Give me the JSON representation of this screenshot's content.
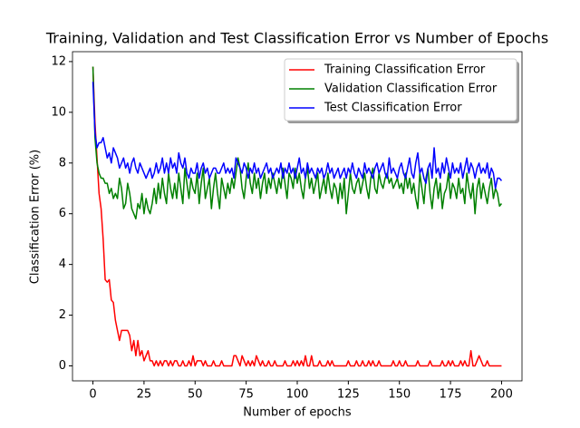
{
  "chart_data": {
    "type": "line",
    "title": "Training, Validation and Test Classification Error vs Number of Epochs",
    "xlabel": "Number of epochs",
    "ylabel": "Classification Error (%)",
    "x": [
      0,
      1,
      2,
      3,
      4,
      5,
      6,
      7,
      8,
      9,
      10,
      11,
      12,
      13,
      14,
      15,
      16,
      17,
      18,
      19,
      20,
      21,
      22,
      23,
      24,
      25,
      26,
      27,
      28,
      29,
      30,
      31,
      32,
      33,
      34,
      35,
      36,
      37,
      38,
      39,
      40,
      41,
      42,
      43,
      44,
      45,
      46,
      47,
      48,
      49,
      50,
      51,
      52,
      53,
      54,
      55,
      56,
      57,
      58,
      59,
      60,
      61,
      62,
      63,
      64,
      65,
      66,
      67,
      68,
      69,
      70,
      71,
      72,
      73,
      74,
      75,
      76,
      77,
      78,
      79,
      80,
      81,
      82,
      83,
      84,
      85,
      86,
      87,
      88,
      89,
      90,
      91,
      92,
      93,
      94,
      95,
      96,
      97,
      98,
      99,
      100,
      101,
      102,
      103,
      104,
      105,
      106,
      107,
      108,
      109,
      110,
      111,
      112,
      113,
      114,
      115,
      116,
      117,
      118,
      119,
      120,
      121,
      122,
      123,
      124,
      125,
      126,
      127,
      128,
      129,
      130,
      131,
      132,
      133,
      134,
      135,
      136,
      137,
      138,
      139,
      140,
      141,
      142,
      143,
      144,
      145,
      146,
      147,
      148,
      149,
      150,
      151,
      152,
      153,
      154,
      155,
      156,
      157,
      158,
      159,
      160,
      161,
      162,
      163,
      164,
      165,
      166,
      167,
      168,
      169,
      170,
      171,
      172,
      173,
      174,
      175,
      176,
      177,
      178,
      179,
      180,
      181,
      182,
      183,
      184,
      185,
      186,
      187,
      188,
      189,
      190,
      191,
      192,
      193,
      194,
      195,
      196,
      197,
      198,
      199,
      200
    ],
    "series": [
      {
        "name": "Training Classification Error",
        "color": "#ff0000",
        "values": [
          11.8,
          9.6,
          8.2,
          6.8,
          6.2,
          5.0,
          3.4,
          3.3,
          3.4,
          2.6,
          2.5,
          1.8,
          1.4,
          1.0,
          1.4,
          1.4,
          1.4,
          1.4,
          1.2,
          0.6,
          1.0,
          0.4,
          1.0,
          0.4,
          0.6,
          0.2,
          0.4,
          0.6,
          0.2,
          0.2,
          0,
          0.2,
          0,
          0.2,
          0,
          0.2,
          0.2,
          0,
          0.2,
          0,
          0.2,
          0.2,
          0,
          0,
          0.2,
          0,
          0,
          0.2,
          0,
          0.4,
          0,
          0.2,
          0.2,
          0.2,
          0,
          0.2,
          0,
          0,
          0,
          0.2,
          0,
          0,
          0,
          0.2,
          0,
          0,
          0,
          0,
          0,
          0.4,
          0.4,
          0.2,
          0,
          0.4,
          0.2,
          0,
          0.2,
          0,
          0.2,
          0,
          0.4,
          0.2,
          0,
          0.2,
          0,
          0,
          0.2,
          0,
          0,
          0.2,
          0,
          0,
          0,
          0,
          0.2,
          0,
          0,
          0,
          0.2,
          0,
          0.2,
          0,
          0.2,
          0,
          0.4,
          0,
          0,
          0.4,
          0,
          0,
          0,
          0.2,
          0,
          0,
          0,
          0.2,
          0,
          0.2,
          0,
          0,
          0,
          0,
          0,
          0,
          0,
          0.2,
          0,
          0,
          0,
          0.2,
          0,
          0,
          0.2,
          0,
          0,
          0.2,
          0,
          0.2,
          0,
          0,
          0.2,
          0,
          0,
          0,
          0,
          0,
          0,
          0.2,
          0,
          0,
          0.2,
          0,
          0,
          0.2,
          0,
          0,
          0,
          0,
          0,
          0.2,
          0,
          0,
          0,
          0,
          0,
          0.2,
          0,
          0,
          0,
          0,
          0,
          0.2,
          0,
          0,
          0.2,
          0,
          0.2,
          0,
          0,
          0,
          0.2,
          0,
          0.2,
          0,
          0,
          0.6,
          0,
          0,
          0.2,
          0.4,
          0.2,
          0,
          0,
          0.2,
          0,
          0,
          0,
          0,
          0,
          0,
          0
        ]
      },
      {
        "name": "Validation Classification Error",
        "color": "#008000",
        "values": [
          11.8,
          9.0,
          8.0,
          7.6,
          7.4,
          7.4,
          7.2,
          7.2,
          6.8,
          7.0,
          6.6,
          6.8,
          6.6,
          7.4,
          7.0,
          6.2,
          6.4,
          7.2,
          6.8,
          6.2,
          6.0,
          5.8,
          6.4,
          6.2,
          6.8,
          6.0,
          6.6,
          6.2,
          6.0,
          6.4,
          7.0,
          6.4,
          7.2,
          6.6,
          7.4,
          6.8,
          6.4,
          7.6,
          7.0,
          6.6,
          7.2,
          6.6,
          7.6,
          7.0,
          6.4,
          7.8,
          7.2,
          6.6,
          7.4,
          7.0,
          6.8,
          7.6,
          6.4,
          7.2,
          7.8,
          6.6,
          7.0,
          7.4,
          6.2,
          7.0,
          7.6,
          6.8,
          6.2,
          7.4,
          7.0,
          6.6,
          7.2,
          6.8,
          7.4,
          7.0,
          7.6,
          8.2,
          7.8,
          7.0,
          6.6,
          7.4,
          8.0,
          7.2,
          6.8,
          7.6,
          7.0,
          7.4,
          6.6,
          7.2,
          7.6,
          6.8,
          7.4,
          7.0,
          7.6,
          7.2,
          6.8,
          7.4,
          7.0,
          7.8,
          7.2,
          6.6,
          7.6,
          7.4,
          7.0,
          7.8,
          7.2,
          7.6,
          7.0,
          6.6,
          7.4,
          7.8,
          7.0,
          7.4,
          6.8,
          7.2,
          7.6,
          6.6,
          7.0,
          7.4,
          6.8,
          7.6,
          7.0,
          6.6,
          7.2,
          7.0,
          6.4,
          7.2,
          6.6,
          7.4,
          6.0,
          6.8,
          7.6,
          7.0,
          6.8,
          7.2,
          7.4,
          6.8,
          7.2,
          7.6,
          7.0,
          6.6,
          7.4,
          7.8,
          7.0,
          6.8,
          7.6,
          7.2,
          7.0,
          7.4,
          7.6,
          7.2,
          7.4,
          7.0,
          7.2,
          7.4,
          7.0,
          7.2,
          6.8,
          7.6,
          7.0,
          7.4,
          6.8,
          7.2,
          6.6,
          6.2,
          7.6,
          7.0,
          6.4,
          7.4,
          7.8,
          6.8,
          6.2,
          7.0,
          7.4,
          6.6,
          7.2,
          6.2,
          6.8,
          7.0,
          7.6,
          6.6,
          7.2,
          7.0,
          6.6,
          7.4,
          6.8,
          7.0,
          6.4,
          7.6,
          7.0,
          6.6,
          7.2,
          6.0,
          7.0,
          7.4,
          6.6,
          7.2,
          6.8,
          6.4,
          7.0,
          7.4,
          6.6,
          7.0,
          6.8,
          6.3,
          6.4
        ]
      },
      {
        "name": "Test Classification Error",
        "color": "#0000ff",
        "values": [
          11.2,
          9.2,
          8.6,
          8.8,
          8.8,
          9.0,
          8.6,
          8.2,
          8.4,
          8.0,
          8.6,
          8.4,
          8.2,
          7.8,
          8.0,
          8.2,
          7.8,
          8.0,
          7.6,
          8.0,
          8.2,
          7.8,
          7.6,
          8.0,
          7.8,
          7.6,
          7.4,
          7.6,
          7.8,
          7.4,
          7.6,
          8.0,
          7.6,
          7.8,
          8.2,
          7.6,
          8.0,
          7.6,
          8.2,
          7.8,
          8.0,
          7.6,
          8.4,
          8.0,
          7.8,
          8.2,
          7.6,
          7.4,
          7.8,
          7.6,
          7.6,
          8.0,
          7.4,
          7.8,
          8.0,
          7.6,
          7.8,
          7.4,
          7.6,
          7.8,
          7.8,
          7.6,
          7.6,
          7.8,
          8.0,
          7.6,
          7.8,
          7.6,
          7.8,
          7.4,
          8.2,
          8.0,
          7.8,
          7.6,
          8.0,
          7.8,
          7.4,
          7.8,
          7.6,
          8.0,
          7.6,
          7.8,
          7.4,
          7.6,
          7.8,
          8.0,
          7.6,
          7.8,
          7.4,
          7.6,
          7.8,
          7.6,
          8.0,
          7.4,
          7.8,
          7.6,
          8.0,
          7.6,
          7.8,
          7.4,
          7.8,
          8.2,
          7.6,
          7.8,
          7.4,
          8.0,
          7.6,
          7.8,
          7.6,
          7.4,
          7.8,
          7.6,
          7.8,
          7.4,
          7.6,
          8.0,
          7.6,
          7.8,
          7.4,
          7.6,
          7.8,
          7.4,
          7.6,
          7.8,
          7.4,
          7.8,
          7.6,
          8.0,
          7.6,
          7.4,
          7.8,
          7.6,
          7.4,
          8.0,
          7.6,
          7.8,
          7.6,
          7.4,
          7.8,
          8.0,
          7.6,
          7.8,
          8.0,
          7.6,
          7.4,
          8.2,
          7.6,
          7.8,
          7.6,
          7.4,
          7.8,
          8.0,
          7.6,
          7.4,
          7.8,
          8.2,
          7.6,
          7.4,
          8.0,
          8.4,
          7.6,
          7.8,
          7.4,
          7.2,
          7.8,
          8.0,
          7.4,
          8.6,
          7.6,
          7.8,
          7.4,
          8.0,
          7.6,
          8.2,
          7.8,
          7.4,
          8.0,
          7.6,
          7.8,
          7.6,
          8.0,
          7.4,
          7.8,
          8.2,
          7.6,
          8.0,
          7.8,
          7.4,
          7.8,
          8.0,
          7.6,
          7.8,
          7.6,
          8.0,
          7.4,
          7.8,
          7.6,
          7.0,
          7.4,
          7.4,
          7.3
        ]
      }
    ],
    "xlim": [
      -10,
      210
    ],
    "xticks": [
      0,
      25,
      50,
      75,
      100,
      125,
      150,
      175,
      200
    ],
    "ylim": [
      -0.59,
      12.39
    ],
    "yticks": [
      0,
      2,
      4,
      6,
      8,
      10,
      12
    ],
    "grid": false,
    "legend": "upper right"
  }
}
